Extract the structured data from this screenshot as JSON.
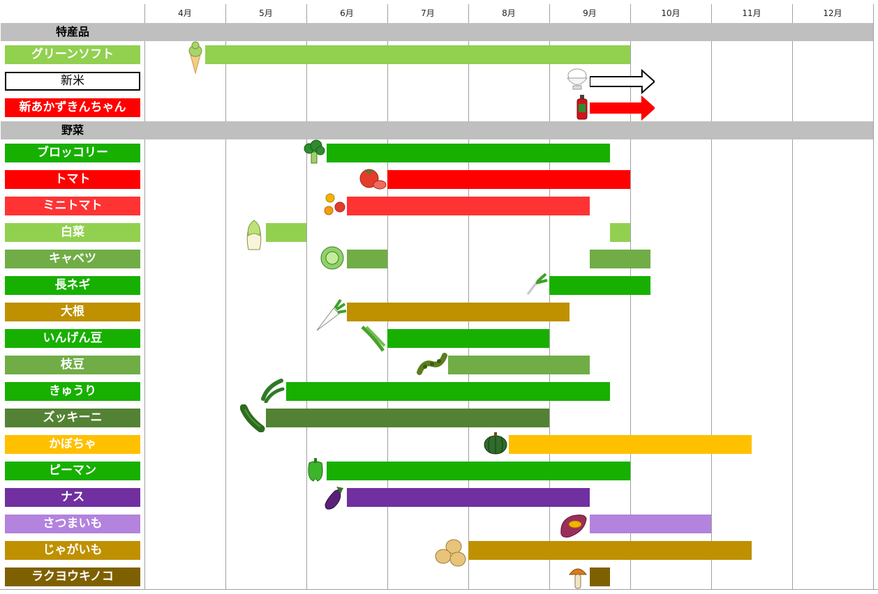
{
  "months": [
    "4月",
    "5月",
    "6月",
    "7月",
    "8月",
    "9月",
    "10月",
    "11月",
    "12月"
  ],
  "sections": [
    {
      "label": "特産品",
      "items": [
        {
          "name": "グリーンソフト",
          "color": "#92d050",
          "start": 4.75,
          "end": 10.0,
          "icon": "ice-cream-icon",
          "style": "bar"
        },
        {
          "name": "新米",
          "color": "#ffffff",
          "start": 9.5,
          "end": 10.3,
          "icon": "rice-bowl-icon",
          "style": "outline-arrow"
        },
        {
          "name": "新あかずきんちゃん",
          "color": "#ff0000",
          "start": 9.5,
          "end": 10.3,
          "icon": "juice-bottle-icon",
          "style": "arrow"
        }
      ]
    },
    {
      "label": "野菜",
      "items": [
        {
          "name": "ブロッコリー",
          "color": "#17b000",
          "start": 6.25,
          "end": 9.75,
          "icon": "broccoli-icon",
          "style": "bar"
        },
        {
          "name": "トマト",
          "color": "#ff0000",
          "start": 7.0,
          "end": 10.0,
          "icon": "tomato-icon",
          "style": "bar"
        },
        {
          "name": "ミニトマト",
          "color": "#ff3333",
          "start": 6.5,
          "end": 9.5,
          "icon": "mini-tomato-icon",
          "style": "bar"
        },
        {
          "name": "白菜",
          "color": "#92d050",
          "segments": [
            [
              5.5,
              6.0
            ],
            [
              9.75,
              10.0
            ]
          ],
          "icon": "napa-cabbage-icon",
          "style": "segments"
        },
        {
          "name": "キャベツ",
          "color": "#70ad47",
          "segments": [
            [
              6.5,
              7.0
            ],
            [
              9.5,
              10.25
            ]
          ],
          "icon": "cabbage-icon",
          "style": "segments"
        },
        {
          "name": "長ネギ",
          "color": "#17b000",
          "start": 9.0,
          "end": 10.25,
          "icon": "green-onion-icon",
          "style": "bar"
        },
        {
          "name": "大根",
          "color": "#bf9000",
          "start": 6.5,
          "end": 9.25,
          "icon": "daikon-icon",
          "style": "bar"
        },
        {
          "name": "いんげん豆",
          "color": "#17b000",
          "start": 7.0,
          "end": 9.0,
          "icon": "green-bean-icon",
          "style": "bar"
        },
        {
          "name": "枝豆",
          "color": "#70ad47",
          "start": 7.75,
          "end": 9.5,
          "icon": "edamame-icon",
          "style": "bar"
        },
        {
          "name": "きゅうり",
          "color": "#17b000",
          "start": 5.75,
          "end": 9.75,
          "icon": "cucumber-icon",
          "style": "bar"
        },
        {
          "name": "ズッキーニ",
          "color": "#548235",
          "start": 5.5,
          "end": 9.0,
          "icon": "zucchini-icon",
          "style": "bar"
        },
        {
          "name": "かぼちゃ",
          "color": "#ffc000",
          "start": 8.5,
          "end": 11.5,
          "icon": "pumpkin-icon",
          "style": "bar"
        },
        {
          "name": "ピーマン",
          "color": "#17b000",
          "start": 6.25,
          "end": 10.0,
          "icon": "green-pepper-icon",
          "style": "bar"
        },
        {
          "name": "ナス",
          "color": "#7030a0",
          "start": 6.5,
          "end": 9.5,
          "icon": "eggplant-icon",
          "style": "bar"
        },
        {
          "name": "さつまいも",
          "color": "#b383dd",
          "start": 9.5,
          "end": 11.0,
          "icon": "sweet-potato-icon",
          "style": "bar"
        },
        {
          "name": "じゃがいも",
          "color": "#bf9000",
          "start": 8.0,
          "end": 11.5,
          "icon": "potato-icon",
          "style": "bar"
        },
        {
          "name": "ラクヨウキノコ",
          "color": "#7f6000",
          "start": 9.5,
          "end": 9.75,
          "icon": "mushroom-icon",
          "style": "bar"
        }
      ]
    }
  ],
  "chart_data": {
    "type": "bar",
    "subtype": "gantt",
    "xlabel": "",
    "ylabel": "",
    "x_unit": "month",
    "xlim": [
      4.0,
      12.5
    ],
    "categories": [
      "4月",
      "5月",
      "6月",
      "7月",
      "8月",
      "9月",
      "10月",
      "11月",
      "12月"
    ],
    "grid": true,
    "legend": "none",
    "series": [
      {
        "name": "グリーンソフト",
        "values": [
          [
            4.75,
            10.0
          ]
        ]
      },
      {
        "name": "新米",
        "values": [
          [
            9.5,
            10.3
          ]
        ]
      },
      {
        "name": "新あかずきんちゃん",
        "values": [
          [
            9.5,
            10.3
          ]
        ]
      },
      {
        "name": "ブロッコリー",
        "values": [
          [
            6.25,
            9.75
          ]
        ]
      },
      {
        "name": "トマト",
        "values": [
          [
            7.0,
            10.0
          ]
        ]
      },
      {
        "name": "ミニトマト",
        "values": [
          [
            6.5,
            9.5
          ]
        ]
      },
      {
        "name": "白菜",
        "values": [
          [
            5.5,
            6.0
          ],
          [
            9.75,
            10.0
          ]
        ]
      },
      {
        "name": "キャベツ",
        "values": [
          [
            6.5,
            7.0
          ],
          [
            9.5,
            10.25
          ]
        ]
      },
      {
        "name": "長ネギ",
        "values": [
          [
            9.0,
            10.25
          ]
        ]
      },
      {
        "name": "大根",
        "values": [
          [
            6.5,
            9.25
          ]
        ]
      },
      {
        "name": "いんげん豆",
        "values": [
          [
            7.0,
            9.0
          ]
        ]
      },
      {
        "name": "枝豆",
        "values": [
          [
            7.75,
            9.5
          ]
        ]
      },
      {
        "name": "きゅうり",
        "values": [
          [
            5.75,
            9.75
          ]
        ]
      },
      {
        "name": "ズッキーニ",
        "values": [
          [
            5.5,
            9.0
          ]
        ]
      },
      {
        "name": "かぼちゃ",
        "values": [
          [
            8.5,
            11.5
          ]
        ]
      },
      {
        "name": "ピーマン",
        "values": [
          [
            6.25,
            10.0
          ]
        ]
      },
      {
        "name": "ナス",
        "values": [
          [
            6.5,
            9.5
          ]
        ]
      },
      {
        "name": "さつまいも",
        "values": [
          [
            9.5,
            11.0
          ]
        ]
      },
      {
        "name": "じゃがいも",
        "values": [
          [
            8.0,
            11.5
          ]
        ]
      },
      {
        "name": "ラクヨウキノコ",
        "values": [
          [
            9.5,
            9.75
          ]
        ]
      }
    ]
  }
}
